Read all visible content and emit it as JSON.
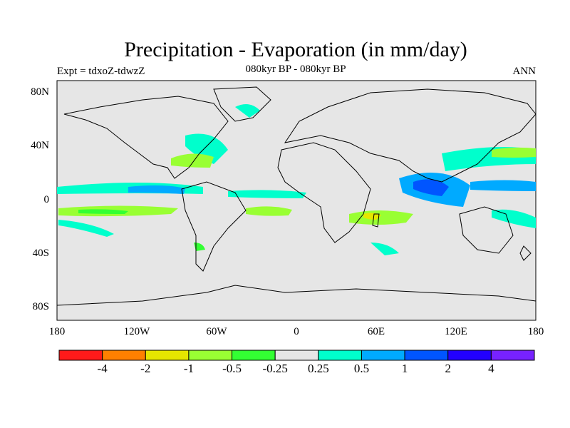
{
  "title": "Precipitation - Evaporation (in mm/day)",
  "subtitle": "080kyr BP - 080kyr BP",
  "experiment_label": "Expt = tdxoZ-tdwzZ",
  "period_label": "ANN",
  "map": {
    "lat_ticks": [
      "80N",
      "40N",
      "0",
      "40S",
      "80S"
    ],
    "lon_ticks": [
      "180",
      "120W",
      "60W",
      "0",
      "60E",
      "120E",
      "180"
    ],
    "background_color": "#e6e6e6"
  },
  "colorbar": {
    "colors": [
      "#ff1a1a",
      "#ff8000",
      "#e6e600",
      "#99ff33",
      "#33ff33",
      "#e6e6e6",
      "#00ffcc",
      "#00aaff",
      "#0055ff",
      "#2200ff",
      "#7722ff"
    ],
    "labels": [
      "-4",
      "-2",
      "-1",
      "-0.5",
      "-0.25",
      "0.25",
      "0.5",
      "1",
      "2",
      "4"
    ]
  },
  "regions": [
    {
      "name": "north-pacific-subtropical-wet",
      "color": "#00ffcc"
    },
    {
      "name": "south-pacific-dry",
      "color": "#99ff33"
    },
    {
      "name": "indian-ocean-wet",
      "color": "#00aaff"
    },
    {
      "name": "west-pacific-wet",
      "color": "#0055ff"
    },
    {
      "name": "madagascar-dry",
      "color": "#e6e600"
    }
  ]
}
